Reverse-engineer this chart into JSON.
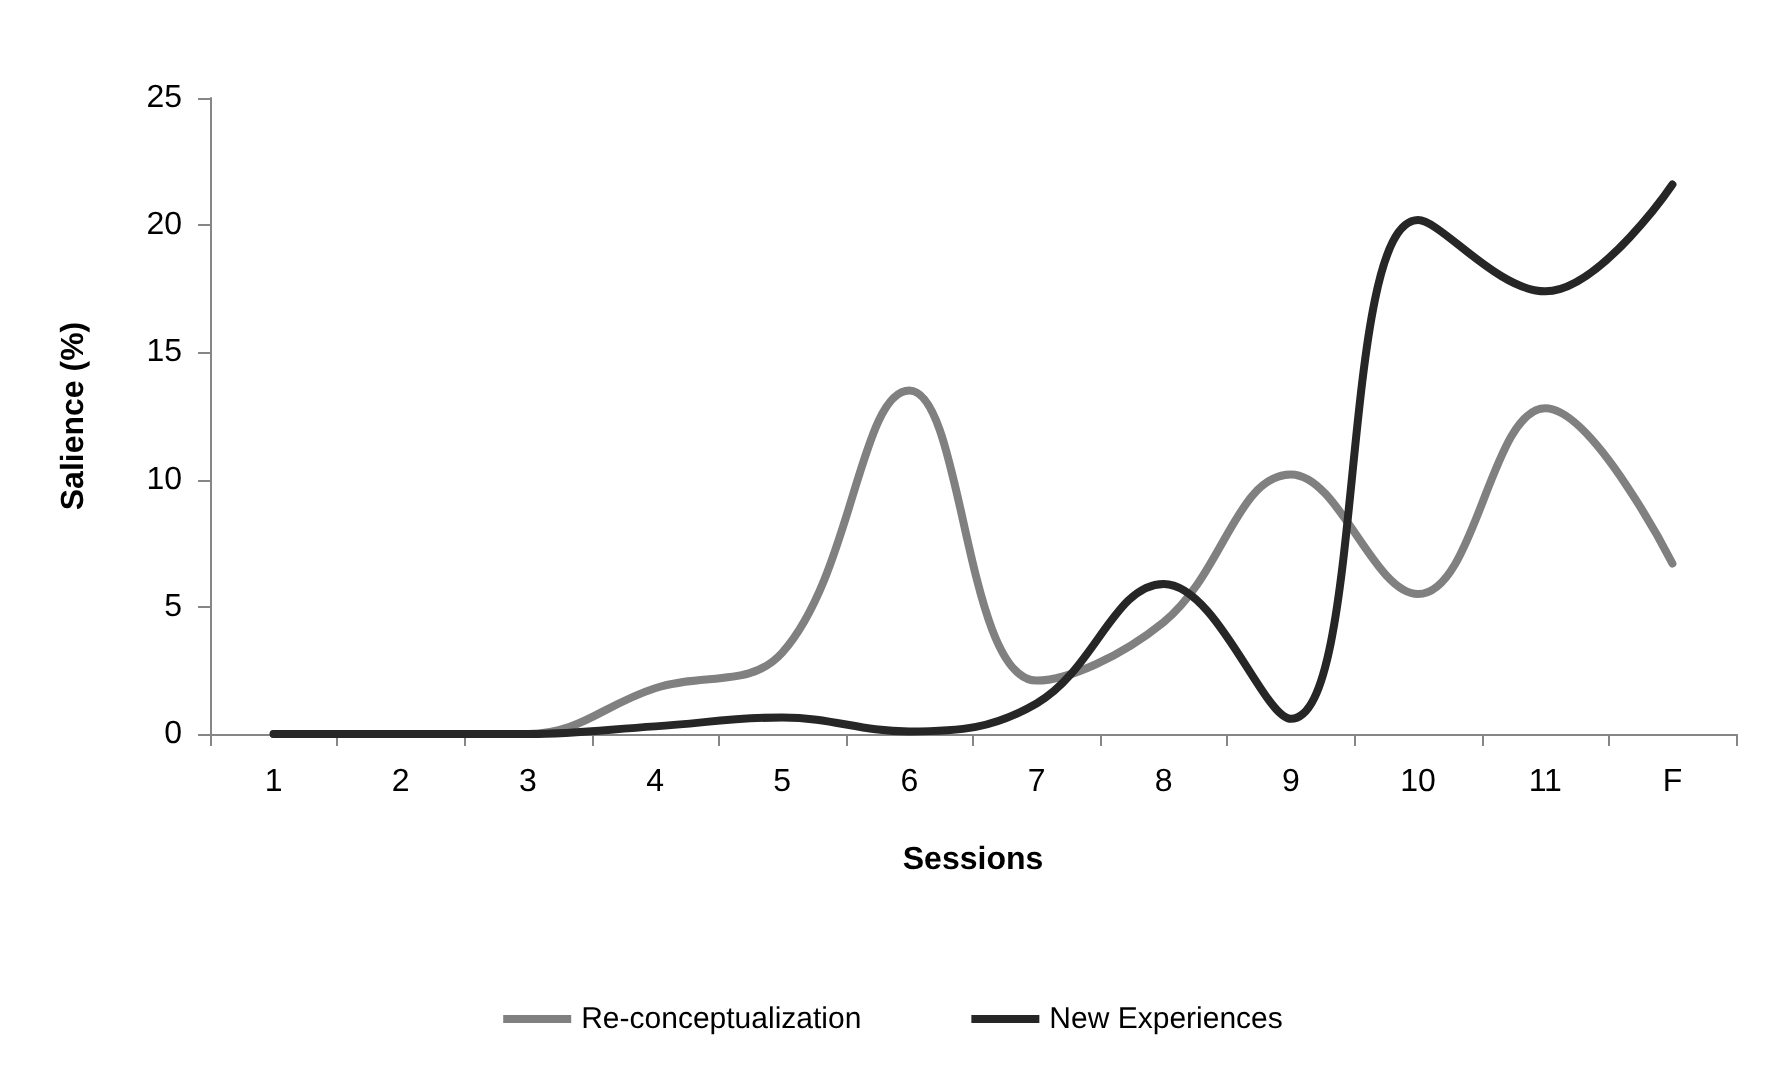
{
  "chart_data": {
    "type": "line",
    "xlabel": "Sessions",
    "ylabel": "Salience (%)",
    "categories": [
      "1",
      "2",
      "3",
      "4",
      "5",
      "6",
      "7",
      "8",
      "9",
      "10",
      "11",
      "F"
    ],
    "series": [
      {
        "name": "Re-conceptualization",
        "color": "#808080",
        "values": [
          0,
          0,
          0,
          1.8,
          3.2,
          13.5,
          2.1,
          4.4,
          10.2,
          5.5,
          12.8,
          6.7
        ]
      },
      {
        "name": "New Experiences",
        "color": "#262626",
        "values": [
          0,
          0,
          0,
          0.3,
          0.65,
          0.1,
          1.2,
          5.9,
          0.6,
          20.2,
          17.4,
          21.6
        ]
      }
    ],
    "ylim": [
      0,
      25
    ],
    "yticks": [
      0,
      5,
      10,
      15,
      20,
      25
    ],
    "grid": false,
    "legend": "bottom",
    "marker": "none",
    "line_style": "solid"
  }
}
